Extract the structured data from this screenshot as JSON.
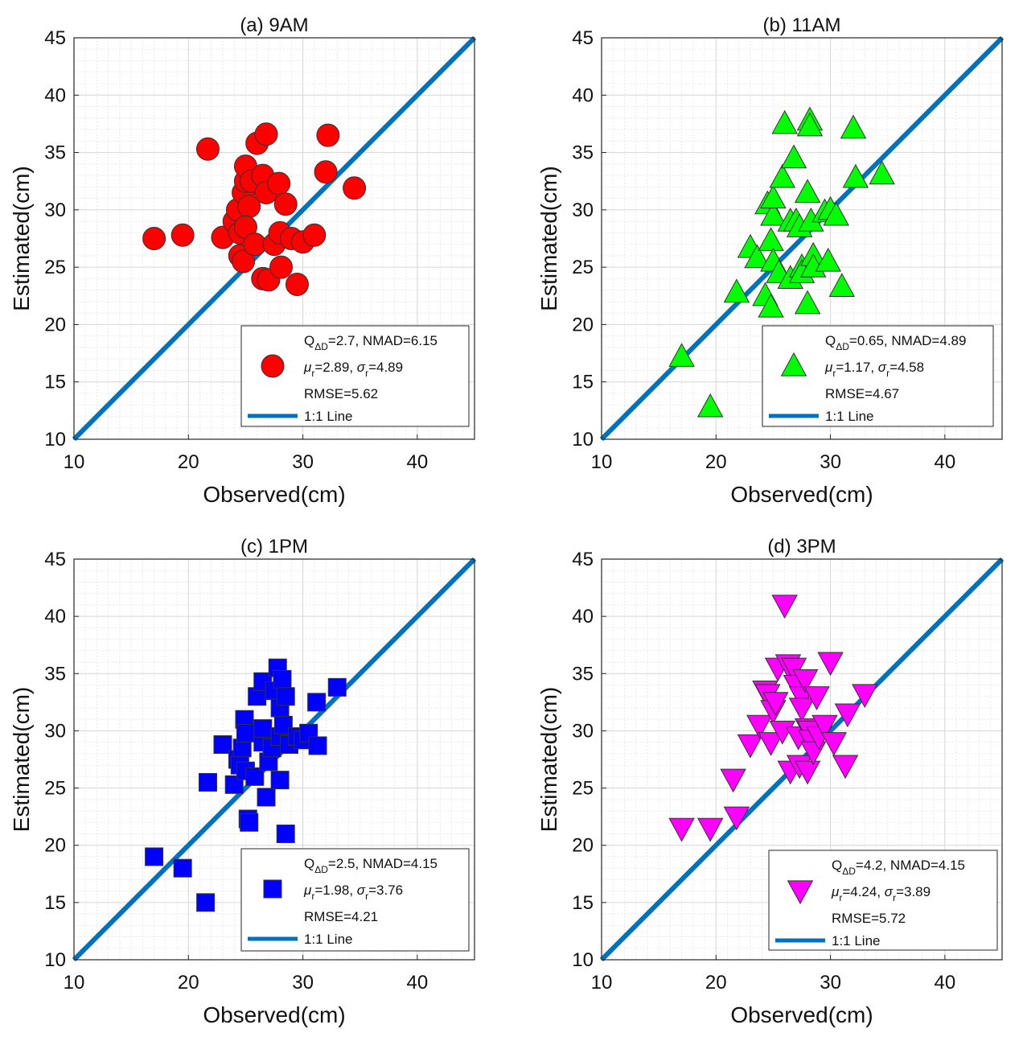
{
  "chart_data": [
    {
      "type": "scatter",
      "title": "(a) 9AM",
      "xlabel": "Observed(cm)",
      "ylabel": "Estimated(cm)",
      "xlim": [
        10,
        45
      ],
      "ylim": [
        10,
        45
      ],
      "xticks": [
        "10",
        "20",
        "30",
        "40"
      ],
      "yticks": [
        "10",
        "15",
        "20",
        "25",
        "30",
        "35",
        "40",
        "45"
      ],
      "grid": true,
      "marker": "circle",
      "color": "#ff0000",
      "points": [
        [
          17,
          27.5
        ],
        [
          19.5,
          27.8
        ],
        [
          21.7,
          35.3
        ],
        [
          23,
          27.6
        ],
        [
          24,
          29
        ],
        [
          24.3,
          30
        ],
        [
          24.5,
          26
        ],
        [
          24.8,
          25.5
        ],
        [
          24.5,
          28
        ],
        [
          24.8,
          31.5
        ],
        [
          25,
          32.5
        ],
        [
          25,
          33.8
        ],
        [
          25.3,
          30.3
        ],
        [
          25,
          28.5
        ],
        [
          25.5,
          32.5
        ],
        [
          26,
          35.8
        ],
        [
          26.5,
          33
        ],
        [
          26.8,
          31.5
        ],
        [
          26.8,
          36.6
        ],
        [
          25.8,
          27
        ],
        [
          26.5,
          24
        ],
        [
          27,
          23.9
        ],
        [
          27.5,
          27
        ],
        [
          28,
          28
        ],
        [
          27.9,
          32.3
        ],
        [
          28.1,
          25
        ],
        [
          28.5,
          30.5
        ],
        [
          29,
          27.5
        ],
        [
          29.5,
          23.5
        ],
        [
          30,
          27.2
        ],
        [
          31,
          27.8
        ],
        [
          32,
          33.3
        ],
        [
          32.2,
          36.5
        ],
        [
          34.5,
          31.9
        ]
      ],
      "legend": {
        "stat1": "Q",
        "stat1_sub": "ΔD",
        "stat1_rest": "=2.7, NMAD=6.15",
        "mu": "μ",
        "mu_sub": "r",
        "mu_val": "=2.89, ",
        "sigma": "σ",
        "sigma_sub": "r",
        "sigma_val": "=4.89",
        "rmse": "RMSE=5.62",
        "line_label": "1:1 Line"
      }
    },
    {
      "type": "scatter",
      "title": "(b) 11AM",
      "xlabel": "Observed(cm)",
      "ylabel": "Estimated(cm)",
      "xlim": [
        10,
        45
      ],
      "ylim": [
        10,
        45
      ],
      "xticks": [
        "10",
        "20",
        "30",
        "40"
      ],
      "yticks": [
        "10",
        "15",
        "20",
        "25",
        "30",
        "35",
        "40",
        "45"
      ],
      "grid": true,
      "marker": "triangle-up",
      "color": "#00ff00",
      "points": [
        [
          17,
          17.2
        ],
        [
          19.5,
          12.8
        ],
        [
          21.8,
          22.8
        ],
        [
          23,
          26.7
        ],
        [
          23.6,
          25.8
        ],
        [
          24.3,
          22.5
        ],
        [
          24.5,
          30.5
        ],
        [
          24.8,
          27.3
        ],
        [
          24.8,
          21.5
        ],
        [
          25,
          29.5
        ],
        [
          25,
          25.5
        ],
        [
          25,
          31
        ],
        [
          25.5,
          24.5
        ],
        [
          25.8,
          32.8
        ],
        [
          26,
          37.5
        ],
        [
          26.5,
          29
        ],
        [
          26.8,
          34.5
        ],
        [
          26.5,
          24
        ],
        [
          27,
          29
        ],
        [
          27.3,
          28.5
        ],
        [
          27.5,
          25
        ],
        [
          27.5,
          24.5
        ],
        [
          28,
          21.8
        ],
        [
          28,
          31.5
        ],
        [
          28.2,
          37.8
        ],
        [
          28.2,
          37.3
        ],
        [
          28.3,
          29
        ],
        [
          28.5,
          26
        ],
        [
          28.5,
          25
        ],
        [
          29.5,
          29.8
        ],
        [
          29.8,
          25.5
        ],
        [
          30,
          30
        ],
        [
          30.5,
          29.5
        ],
        [
          31,
          23.3
        ],
        [
          32,
          37.1
        ],
        [
          32.2,
          32.8
        ],
        [
          34.5,
          33.1
        ]
      ],
      "legend": {
        "stat1": "Q",
        "stat1_sub": "ΔD",
        "stat1_rest": "=0.65, NMAD=4.89",
        "mu": "μ",
        "mu_sub": "r",
        "mu_val": "=1.17, ",
        "sigma": "σ",
        "sigma_sub": "r",
        "sigma_val": "=4.58",
        "rmse": "RMSE=4.67",
        "line_label": "1:1 Line"
      }
    },
    {
      "type": "scatter",
      "title": "(c) 1PM",
      "xlabel": "Observed(cm)",
      "ylabel": "Estimated(cm)",
      "xlim": [
        10,
        45
      ],
      "ylim": [
        10,
        45
      ],
      "xticks": [
        "10",
        "20",
        "30",
        "40"
      ],
      "yticks": [
        "10",
        "15",
        "20",
        "25",
        "30",
        "35",
        "40",
        "45"
      ],
      "grid": true,
      "marker": "square",
      "color": "#0000ff",
      "points": [
        [
          17,
          19
        ],
        [
          19.5,
          18
        ],
        [
          21.5,
          15
        ],
        [
          21.7,
          25.5
        ],
        [
          23,
          28.8
        ],
        [
          24,
          25.3
        ],
        [
          24.3,
          27.5
        ],
        [
          24.5,
          27
        ],
        [
          24.7,
          28.5
        ],
        [
          24.9,
          31
        ],
        [
          25,
          29.8
        ],
        [
          25.2,
          22.3
        ],
        [
          25.3,
          22
        ],
        [
          25,
          26.5
        ],
        [
          25.8,
          26
        ],
        [
          26,
          33
        ],
        [
          26.5,
          29
        ],
        [
          26.5,
          34.3
        ],
        [
          26.5,
          30.2
        ],
        [
          26.8,
          24.2
        ],
        [
          27,
          27.3
        ],
        [
          27.3,
          28.5
        ],
        [
          27.5,
          33.5
        ],
        [
          27.8,
          35.5
        ],
        [
          28,
          32
        ],
        [
          28,
          29.5
        ],
        [
          28,
          25.7
        ],
        [
          28.2,
          34.5
        ],
        [
          28.3,
          30.5
        ],
        [
          28.5,
          21
        ],
        [
          28.5,
          33
        ],
        [
          28.8,
          28.8
        ],
        [
          29.5,
          29.5
        ],
        [
          30,
          29.2
        ],
        [
          30.5,
          29.8
        ],
        [
          31.2,
          32.5
        ],
        [
          31.3,
          28.7
        ],
        [
          33,
          33.8
        ]
      ],
      "legend": {
        "stat1": "Q",
        "stat1_sub": "ΔD",
        "stat1_rest": "=2.5, NMAD=4.15",
        "mu": "μ",
        "mu_sub": "r",
        "mu_val": "=1.98, ",
        "sigma": "σ",
        "sigma_sub": "r",
        "sigma_val": "=3.76",
        "rmse": "RMSE=4.21",
        "line_label": "1:1 Line"
      }
    },
    {
      "type": "scatter",
      "title": "(d) 3PM",
      "xlabel": "Observed(cm)",
      "ylabel": "Estimated(cm)",
      "xlim": [
        10,
        45
      ],
      "ylim": [
        10,
        45
      ],
      "xticks": [
        "10",
        "20",
        "30",
        "40"
      ],
      "yticks": [
        "10",
        "15",
        "20",
        "25",
        "30",
        "35",
        "40",
        "45"
      ],
      "grid": true,
      "marker": "triangle-down",
      "color": "#ff00ff",
      "points": [
        [
          17,
          21.5
        ],
        [
          19.5,
          21.5
        ],
        [
          21.5,
          25.8
        ],
        [
          21.8,
          22.5
        ],
        [
          23,
          28.8
        ],
        [
          23.8,
          30.5
        ],
        [
          24.3,
          33.5
        ],
        [
          24.5,
          33.2
        ],
        [
          24.8,
          29
        ],
        [
          25,
          31.8
        ],
        [
          25.2,
          32.5
        ],
        [
          25.4,
          35.5
        ],
        [
          25.8,
          30
        ],
        [
          26,
          41
        ],
        [
          26.3,
          35.8
        ],
        [
          26.5,
          26.5
        ],
        [
          26.8,
          35.5
        ],
        [
          27,
          34
        ],
        [
          27.2,
          29.5
        ],
        [
          27.3,
          27
        ],
        [
          27.5,
          33
        ],
        [
          27.5,
          32
        ],
        [
          27.8,
          34.5
        ],
        [
          28,
          26.5
        ],
        [
          28,
          30.2
        ],
        [
          28.2,
          30
        ],
        [
          28.3,
          29.2
        ],
        [
          28.5,
          28.2
        ],
        [
          28.8,
          33
        ],
        [
          29,
          29.5
        ],
        [
          29.5,
          30.5
        ],
        [
          30,
          36
        ],
        [
          30.3,
          29
        ],
        [
          31.3,
          27
        ],
        [
          31.5,
          31.5
        ],
        [
          33,
          33.2
        ]
      ],
      "legend": {
        "stat1": "Q",
        "stat1_sub": "ΔD",
        "stat1_rest": "=4.2, NMAD=4.15",
        "mu": "μ",
        "mu_sub": "r",
        "mu_val": "=4.24, ",
        "sigma": "σ",
        "sigma_sub": "r",
        "sigma_val": "=3.89",
        "rmse": "RMSE=5.72",
        "line_label": "1:1 Line"
      }
    }
  ],
  "colors": {
    "line": "#0072bd",
    "marker_edge": "#333333",
    "grid": "#d6d6d6"
  }
}
